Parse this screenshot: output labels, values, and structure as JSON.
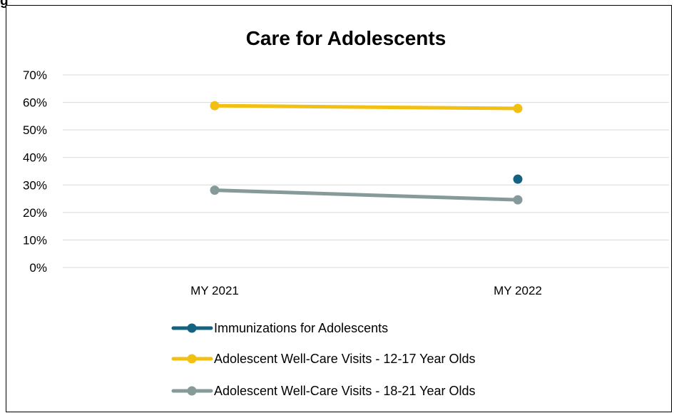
{
  "figure_label": "g",
  "chart_data": {
    "type": "line",
    "title": "Care for Adolescents",
    "categories": [
      "MY 2021",
      "MY 2022"
    ],
    "ylim": [
      0,
      70
    ],
    "yticks": [
      0,
      10,
      20,
      30,
      40,
      50,
      60,
      70
    ],
    "ytick_labels": [
      "0%",
      "10%",
      "20%",
      "30%",
      "40%",
      "50%",
      "60%",
      "70%"
    ],
    "grid": true,
    "legend_position": "bottom",
    "series": [
      {
        "name": "Immunizations for Adolescents",
        "color": "#13627F",
        "values": [
          null,
          32.1
        ]
      },
      {
        "name": "Adolescent Well-Care Visits - 12-17 Year Olds",
        "color": "#F2C012",
        "values": [
          58.8,
          57.8
        ]
      },
      {
        "name": "Adolescent Well-Care Visits - 18-21 Year Olds",
        "color": "#879A9A",
        "values": [
          28.1,
          24.6
        ]
      }
    ]
  }
}
